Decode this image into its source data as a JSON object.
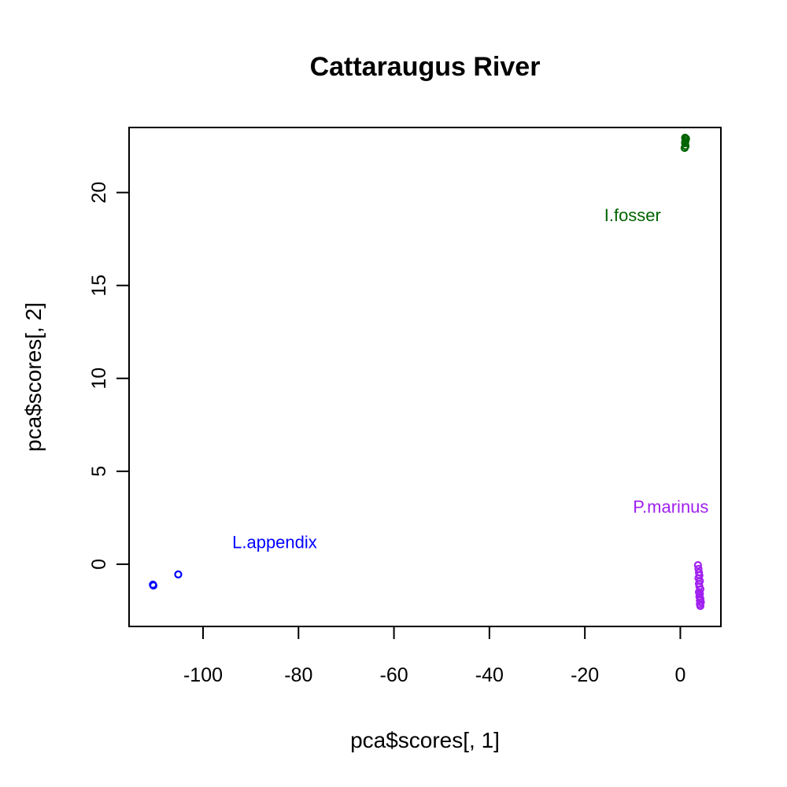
{
  "chart_data": {
    "type": "scatter",
    "title": "Cattaraugus River",
    "xlabel": "pca$scores[, 1]",
    "ylabel": "pca$scores[, 2]",
    "xlim": [
      -115.5,
      8.5
    ],
    "ylim": [
      -3.35,
      23.5
    ],
    "xticks": [
      -100,
      -80,
      -60,
      -40,
      -20,
      0
    ],
    "yticks": [
      0,
      5,
      10,
      15,
      20
    ],
    "grid": false,
    "marker": "open-circle",
    "series": [
      {
        "name": "L.appendix",
        "color": "#0000ff",
        "label_at": [
          -85,
          1.2
        ],
        "points": [
          [
            -110.5,
            -1.1
          ],
          [
            -110.4,
            -1.15
          ],
          [
            -105.2,
            -0.55
          ]
        ]
      },
      {
        "name": "I.fosser",
        "color": "#006400",
        "label_at": [
          -10,
          18.8
        ],
        "points": [
          [
            1.0,
            22.95
          ],
          [
            1.1,
            22.8
          ],
          [
            1.0,
            22.65
          ],
          [
            1.1,
            22.5
          ],
          [
            0.9,
            22.4
          ],
          [
            1.2,
            22.9
          ],
          [
            1.0,
            22.7
          ]
        ]
      },
      {
        "name": "P.marinus",
        "color": "#a020f0",
        "label_at": [
          -2,
          3.1
        ],
        "points": [
          [
            3.7,
            -0.05
          ],
          [
            3.8,
            -0.25
          ],
          [
            3.9,
            -0.45
          ],
          [
            4.0,
            -0.6
          ],
          [
            3.8,
            -0.75
          ],
          [
            4.1,
            -0.9
          ],
          [
            3.9,
            -1.05
          ],
          [
            4.0,
            -1.2
          ],
          [
            4.2,
            -1.35
          ],
          [
            3.9,
            -1.5
          ],
          [
            4.1,
            -1.6
          ],
          [
            4.0,
            -1.75
          ],
          [
            4.2,
            -1.85
          ],
          [
            4.1,
            -1.95
          ],
          [
            4.3,
            -2.05
          ],
          [
            4.1,
            -2.15
          ],
          [
            4.2,
            -2.25
          ]
        ]
      }
    ]
  }
}
